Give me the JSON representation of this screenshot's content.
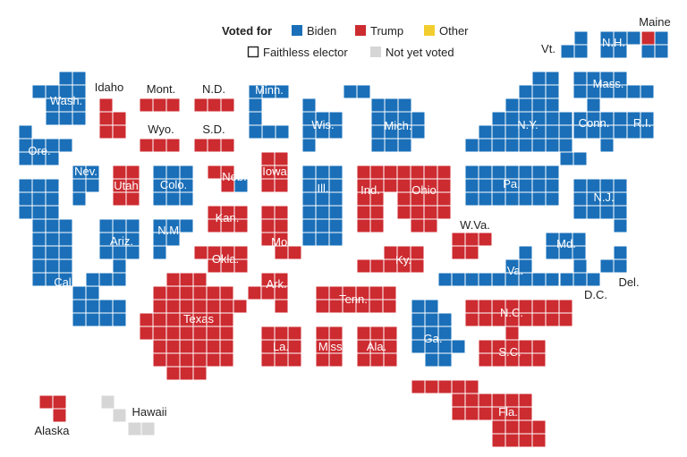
{
  "legend": {
    "title": "Voted for",
    "biden": "Biden",
    "trump": "Trump",
    "other": "Other",
    "faithless": "Faithless elector",
    "not_yet": "Not yet voted"
  },
  "colors": {
    "biden": "#1a6fb8",
    "trump": "#cc2b30",
    "other": "#f2cd2f",
    "not_yet": "#d6d6d6",
    "grid": "#ffffff",
    "label_dark": "#222222",
    "label_light": "#ffffff"
  },
  "chart_data": {
    "type": "electoral-cartogram",
    "unit": "one square per electoral vote",
    "states": [
      {
        "name": "Maine",
        "abbr": "Maine",
        "winner": "Biden",
        "votes": 4,
        "split": {
          "Biden": 3,
          "Trump": 1
        }
      },
      {
        "name": "Vermont",
        "abbr": "Vt.",
        "winner": "Biden",
        "votes": 3
      },
      {
        "name": "New Hampshire",
        "abbr": "N.H.",
        "winner": "Biden",
        "votes": 4
      },
      {
        "name": "Washington",
        "abbr": "Wash.",
        "winner": "Biden",
        "votes": 12
      },
      {
        "name": "Idaho",
        "abbr": "Idaho",
        "winner": "Trump",
        "votes": 4
      },
      {
        "name": "Montana",
        "abbr": "Mont.",
        "winner": "Trump",
        "votes": 3
      },
      {
        "name": "North Dakota",
        "abbr": "N.D.",
        "winner": "Trump",
        "votes": 3
      },
      {
        "name": "Minnesota",
        "abbr": "Minn.",
        "winner": "Biden",
        "votes": 10
      },
      {
        "name": "Massachusetts",
        "abbr": "Mass.",
        "winner": "Biden",
        "votes": 11
      },
      {
        "name": "Oregon",
        "abbr": "Ore.",
        "winner": "Biden",
        "votes": 7
      },
      {
        "name": "Wyoming",
        "abbr": "Wyo.",
        "winner": "Trump",
        "votes": 3
      },
      {
        "name": "South Dakota",
        "abbr": "S.D.",
        "winner": "Trump",
        "votes": 3
      },
      {
        "name": "Wisconsin",
        "abbr": "Wis.",
        "winner": "Biden",
        "votes": 10
      },
      {
        "name": "Michigan",
        "abbr": "Mich.",
        "winner": "Biden",
        "votes": 16
      },
      {
        "name": "New York",
        "abbr": "N.Y.",
        "winner": "Biden",
        "votes": 29
      },
      {
        "name": "Connecticut",
        "abbr": "Conn.",
        "winner": "Biden",
        "votes": 7
      },
      {
        "name": "Rhode Island",
        "abbr": "R.I.",
        "winner": "Biden",
        "votes": 4
      },
      {
        "name": "Nevada",
        "abbr": "Nev.",
        "winner": "Biden",
        "votes": 6
      },
      {
        "name": "Utah",
        "abbr": "Utah",
        "winner": "Trump",
        "votes": 6
      },
      {
        "name": "Colorado",
        "abbr": "Colo.",
        "winner": "Biden",
        "votes": 9
      },
      {
        "name": "Nebraska",
        "abbr": "Neb.",
        "winner": "Trump",
        "votes": 5,
        "split": {
          "Trump": 4,
          "Biden": 1
        }
      },
      {
        "name": "Iowa",
        "abbr": "Iowa",
        "winner": "Trump",
        "votes": 6
      },
      {
        "name": "Illinois",
        "abbr": "Ill.",
        "winner": "Biden",
        "votes": 20
      },
      {
        "name": "Indiana",
        "abbr": "Ind.",
        "winner": "Trump",
        "votes": 11
      },
      {
        "name": "Ohio",
        "abbr": "Ohio",
        "winner": "Trump",
        "votes": 18
      },
      {
        "name": "Pennsylvania",
        "abbr": "Pa.",
        "winner": "Biden",
        "votes": 20
      },
      {
        "name": "New Jersey",
        "abbr": "N.J.",
        "winner": "Biden",
        "votes": 14
      },
      {
        "name": "California",
        "abbr": "Calif.",
        "winner": "Biden",
        "votes": 55
      },
      {
        "name": "Arizona",
        "abbr": "Ariz.",
        "winner": "Biden",
        "votes": 11
      },
      {
        "name": "New Mexico",
        "abbr": "N.M.",
        "winner": "Biden",
        "votes": 5
      },
      {
        "name": "Kansas",
        "abbr": "Kan.",
        "winner": "Trump",
        "votes": 6
      },
      {
        "name": "Missouri",
        "abbr": "Mo.",
        "winner": "Trump",
        "votes": 10
      },
      {
        "name": "Oklahoma",
        "abbr": "Okla.",
        "winner": "Trump",
        "votes": 7
      },
      {
        "name": "West Virginia",
        "abbr": "W.Va.",
        "winner": "Trump",
        "votes": 5
      },
      {
        "name": "Kentucky",
        "abbr": "Ky.",
        "winner": "Trump",
        "votes": 8
      },
      {
        "name": "Maryland",
        "abbr": "Md.",
        "winner": "Biden",
        "votes": 10
      },
      {
        "name": "Delaware",
        "abbr": "Del.",
        "winner": "Biden",
        "votes": 3
      },
      {
        "name": "District of Columbia",
        "abbr": "D.C.",
        "winner": "Biden",
        "votes": 3
      },
      {
        "name": "Virginia",
        "abbr": "Va.",
        "winner": "Biden",
        "votes": 13
      },
      {
        "name": "Arkansas",
        "abbr": "Ark.",
        "winner": "Trump",
        "votes": 6
      },
      {
        "name": "Tennessee",
        "abbr": "Tenn.",
        "winner": "Trump",
        "votes": 11
      },
      {
        "name": "North Carolina",
        "abbr": "N.C.",
        "winner": "Trump",
        "votes": 15
      },
      {
        "name": "Texas",
        "abbr": "Texas",
        "winner": "Trump",
        "votes": 38
      },
      {
        "name": "Louisiana",
        "abbr": "La.",
        "winner": "Trump",
        "votes": 8
      },
      {
        "name": "Mississippi",
        "abbr": "Miss.",
        "winner": "Trump",
        "votes": 6
      },
      {
        "name": "Alabama",
        "abbr": "Ala.",
        "winner": "Trump",
        "votes": 9
      },
      {
        "name": "Georgia",
        "abbr": "Ga.",
        "winner": "Biden",
        "votes": 16
      },
      {
        "name": "South Carolina",
        "abbr": "S.C.",
        "winner": "Trump",
        "votes": 9
      },
      {
        "name": "Florida",
        "abbr": "Fla.",
        "winner": "Trump",
        "votes": 29
      },
      {
        "name": "Alaska",
        "abbr": "Alaska",
        "winner": "Trump",
        "votes": 3
      },
      {
        "name": "Hawaii",
        "abbr": "Hawaii",
        "winner": "Not yet voted",
        "votes": 4
      }
    ]
  }
}
